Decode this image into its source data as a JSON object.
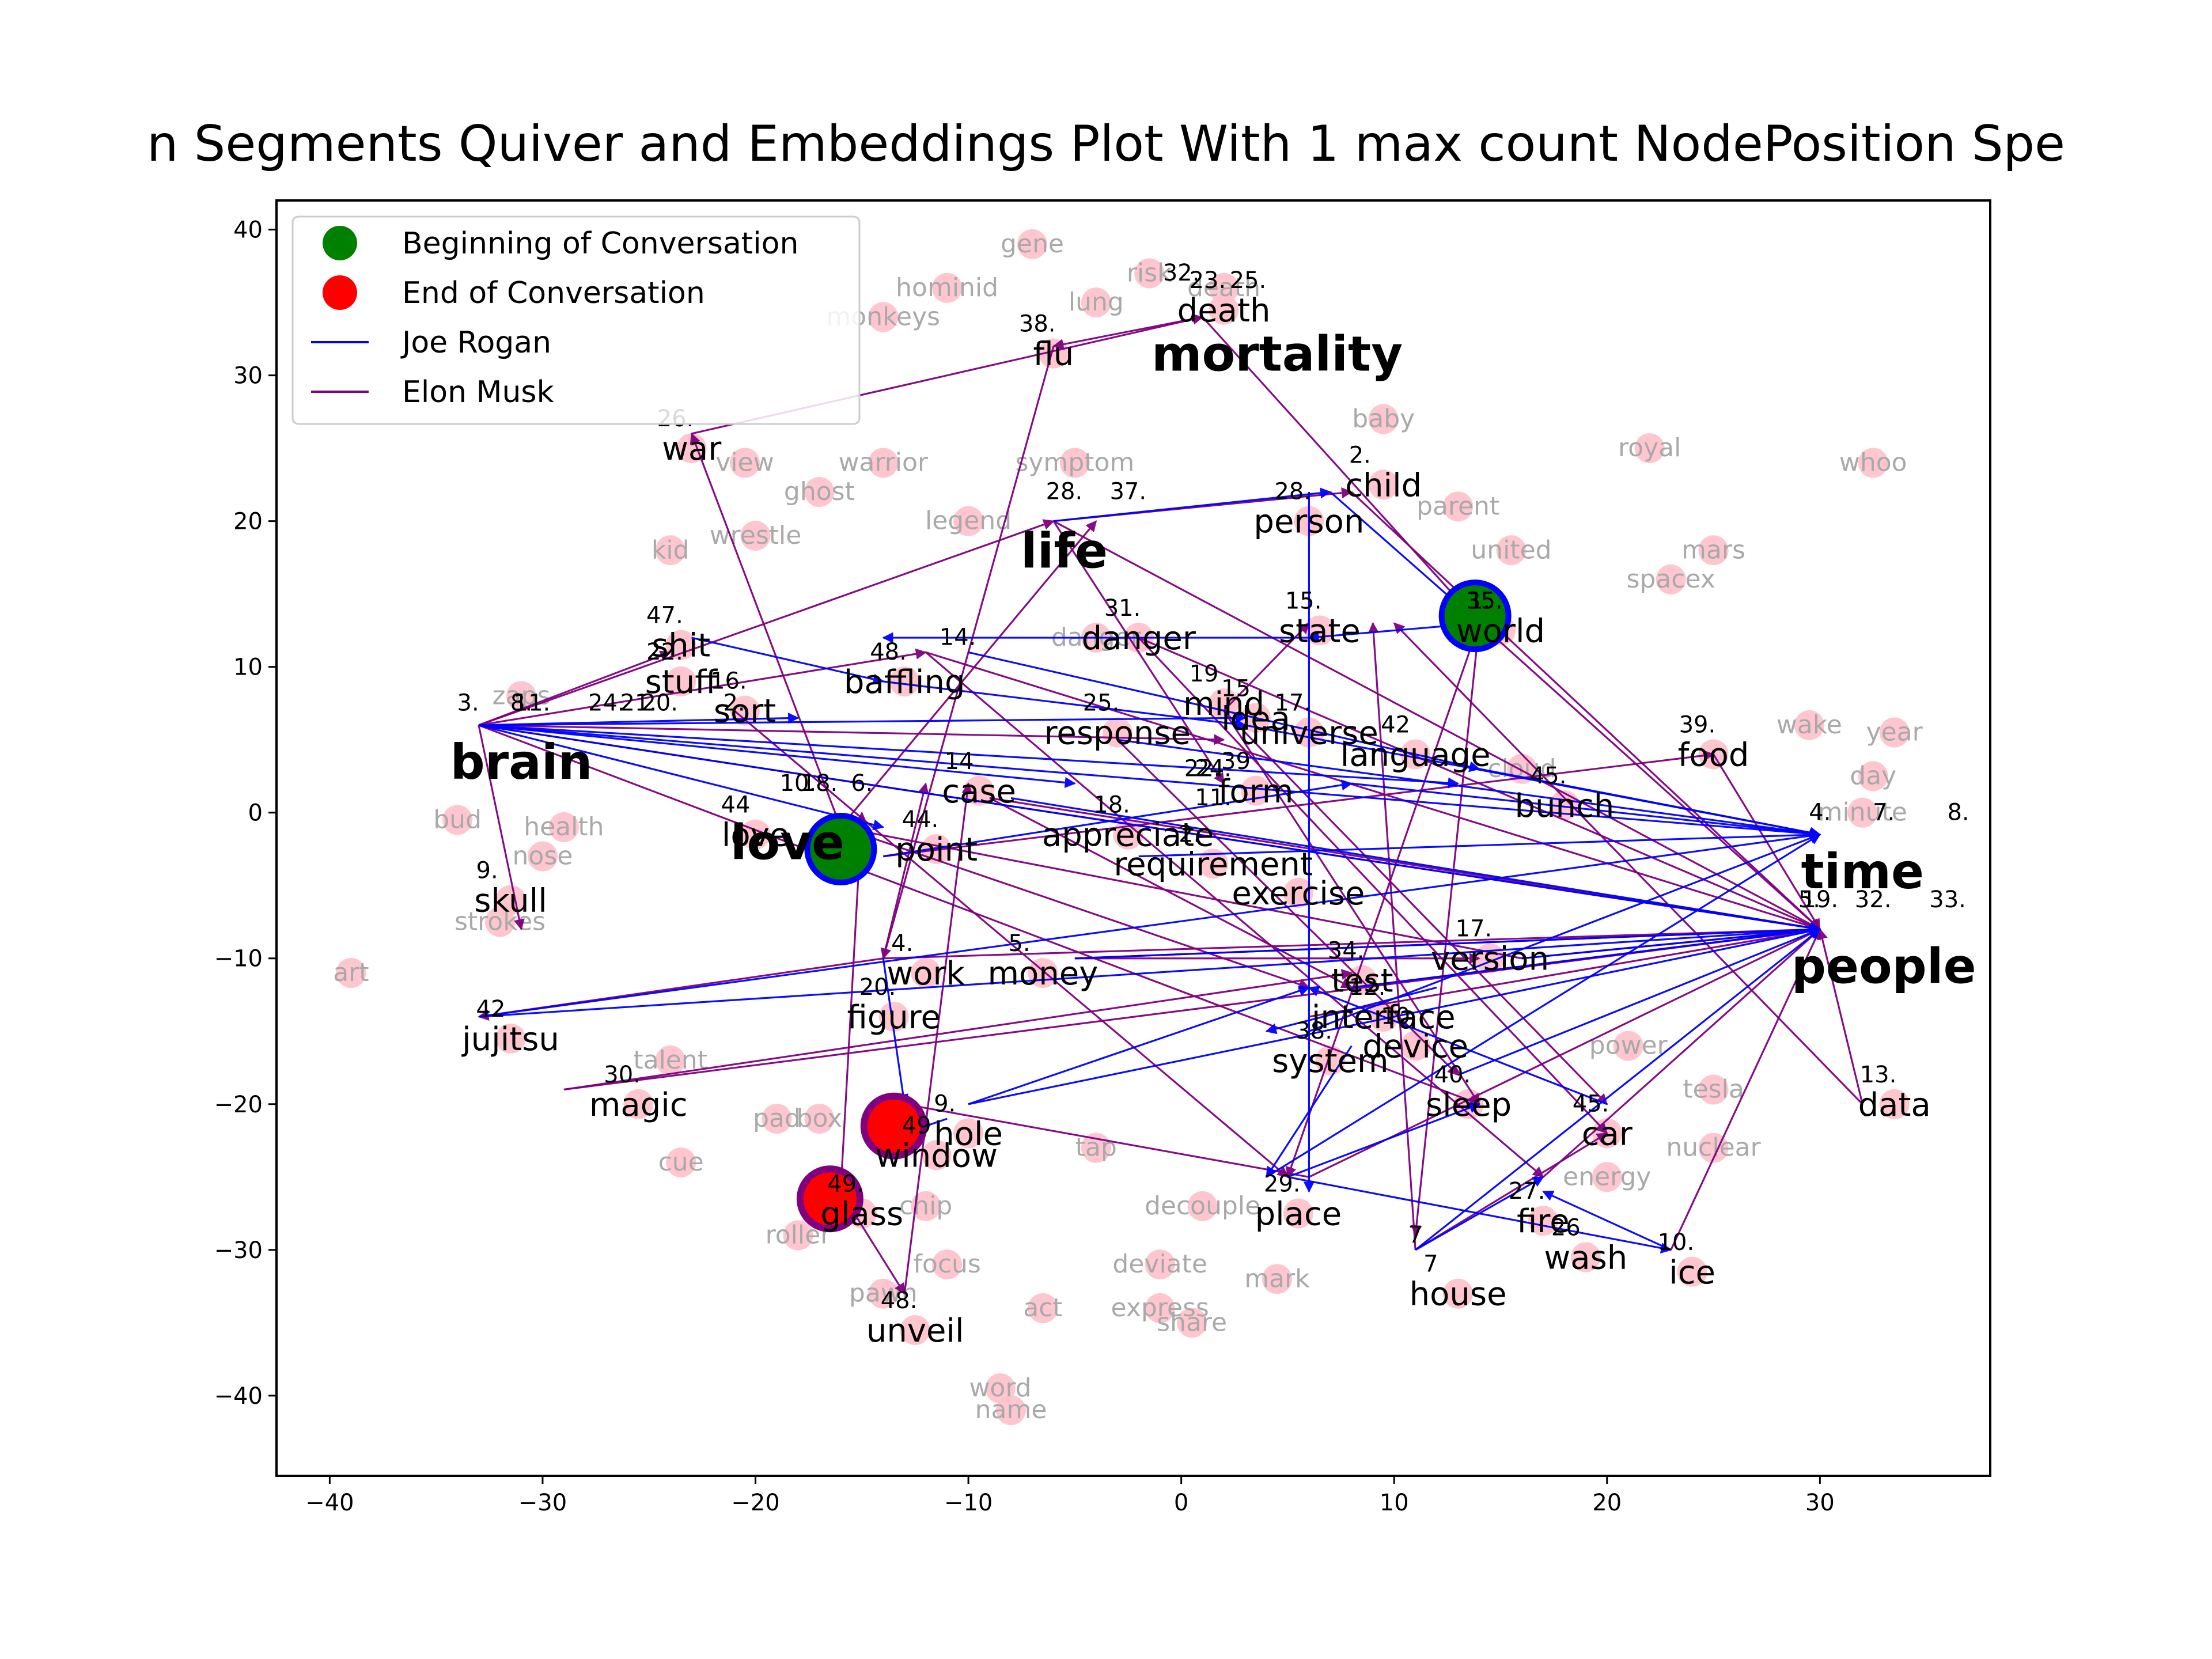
{
  "title": "n Segments Quiver and Embeddings Plot With 1 max count NodePosition Spe",
  "chart_data": {
    "type": "scatter",
    "title": "n Segments Quiver and Embeddings Plot With 1 max count NodePosition Spe",
    "xlim": [
      -42.5,
      38
    ],
    "ylim": [
      -45.5,
      42
    ],
    "xticks": [
      -40,
      -30,
      -20,
      -10,
      0,
      10,
      20,
      30
    ],
    "yticks": [
      -40,
      -30,
      -20,
      -10,
      0,
      10,
      20,
      30,
      40
    ],
    "tick_labels_x": [
      "−40",
      "−30",
      "−20",
      "−10",
      "0",
      "10",
      "20",
      "30"
    ],
    "tick_labels_y": [
      "−40",
      "−30",
      "−20",
      "−10",
      "0",
      "10",
      "20",
      "30",
      "40"
    ],
    "grid": false,
    "legend": {
      "position": "top-left",
      "entries": [
        {
          "label": "Beginning of Conversation",
          "color": "#008000",
          "kind": "marker"
        },
        {
          "label": "End of Conversation",
          "color": "#ff0000",
          "kind": "marker"
        },
        {
          "label": "Joe Rogan",
          "color": "#0000ff",
          "kind": "line"
        },
        {
          "label": "Elon Musk",
          "color": "#800080",
          "kind": "line"
        }
      ]
    },
    "colors": {
      "background_points": "#ffc0cb",
      "background_text": "#a9a9a9",
      "joe_rogan": "#0000ff",
      "elon_musk": "#800080",
      "start": "#008000",
      "end": "#ff0000"
    },
    "background_words": [
      {
        "text": "gene",
        "x": -7,
        "y": 39
      },
      {
        "text": "risk",
        "x": -1.5,
        "y": 37
      },
      {
        "text": "hominid",
        "x": -11,
        "y": 36
      },
      {
        "text": "monkeys",
        "x": -14,
        "y": 34
      },
      {
        "text": "lung",
        "x": -4,
        "y": 35
      },
      {
        "text": "warrior",
        "x": -14,
        "y": 24
      },
      {
        "text": "symptom",
        "x": -5,
        "y": 24
      },
      {
        "text": "ghost",
        "x": -17,
        "y": 22
      },
      {
        "text": "legend",
        "x": -10,
        "y": 20
      },
      {
        "text": "view",
        "x": -20.5,
        "y": 24
      },
      {
        "text": "kid",
        "x": -24,
        "y": 18
      },
      {
        "text": "zaps",
        "x": -31,
        "y": 8
      },
      {
        "text": "bud",
        "x": -34,
        "y": -0.5
      },
      {
        "text": "health",
        "x": -29,
        "y": -1
      },
      {
        "text": "nose",
        "x": -30,
        "y": -3
      },
      {
        "text": "strokes",
        "x": -32,
        "y": -7.5
      },
      {
        "text": "art",
        "x": -39,
        "y": -11
      },
      {
        "text": "talent",
        "x": -24,
        "y": -17
      },
      {
        "text": "cue",
        "x": -23.5,
        "y": -24
      },
      {
        "text": "pad",
        "x": -19,
        "y": -21
      },
      {
        "text": "box",
        "x": -17,
        "y": -21
      },
      {
        "text": "roller",
        "x": -18,
        "y": -29
      },
      {
        "text": "chip",
        "x": -12,
        "y": -27
      },
      {
        "text": "focus",
        "x": -11,
        "y": -31
      },
      {
        "text": "pawn",
        "x": -14,
        "y": -33
      },
      {
        "text": "act",
        "x": -6.5,
        "y": -34
      },
      {
        "text": "deviate",
        "x": -1,
        "y": -31
      },
      {
        "text": "express",
        "x": -1,
        "y": -34
      },
      {
        "text": "share",
        "x": 0.5,
        "y": -35
      },
      {
        "text": "mark",
        "x": 4.5,
        "y": -32
      },
      {
        "text": "tap",
        "x": -4,
        "y": -23
      },
      {
        "text": "decouple",
        "x": 1,
        "y": -27
      },
      {
        "text": "word",
        "x": -8.5,
        "y": -39.5
      },
      {
        "text": "name",
        "x": -8,
        "y": -41
      },
      {
        "text": "energy",
        "x": 20,
        "y": -25
      },
      {
        "text": "tesla",
        "x": 25,
        "y": -19
      },
      {
        "text": "nuclear",
        "x": 25,
        "y": -23
      },
      {
        "text": "power",
        "x": 21,
        "y": -16
      },
      {
        "text": "cloud",
        "x": 16,
        "y": 3
      },
      {
        "text": "wake",
        "x": 29.5,
        "y": 6
      },
      {
        "text": "year",
        "x": 33.5,
        "y": 5.5
      },
      {
        "text": "day",
        "x": 32.5,
        "y": 2.5
      },
      {
        "text": "minute",
        "x": 32,
        "y": 0
      },
      {
        "text": "united",
        "x": 15.5,
        "y": 18
      },
      {
        "text": "royal",
        "x": 22,
        "y": 25
      },
      {
        "text": "spacex",
        "x": 23,
        "y": 16
      },
      {
        "text": "mars",
        "x": 25,
        "y": 18
      },
      {
        "text": "whoo",
        "x": 32.5,
        "y": 24
      },
      {
        "text": "baby",
        "x": 9.5,
        "y": 27
      },
      {
        "text": "parent",
        "x": 13,
        "y": 21
      },
      {
        "text": "danger",
        "x": -4,
        "y": 12
      },
      {
        "text": "wrestle",
        "x": -20,
        "y": 19
      },
      {
        "text": "death",
        "x": 2,
        "y": 36
      }
    ],
    "key_words": [
      {
        "text": "death",
        "x": 2,
        "y": 34.5,
        "num": "23.",
        "num2": "25."
      },
      {
        "text": "flu",
        "x": -6,
        "y": 31.5,
        "num": "38."
      },
      {
        "text": "war",
        "x": -23,
        "y": 25,
        "num": "26."
      },
      {
        "text": "child",
        "x": 9.5,
        "y": 22.5,
        "num": "2."
      },
      {
        "text": "person",
        "x": 6,
        "y": 20,
        "num": "28."
      },
      {
        "text": "world",
        "x": 15,
        "y": 12.5,
        "num": "35."
      },
      {
        "text": "state",
        "x": 6.5,
        "y": 12.5,
        "num": "15."
      },
      {
        "text": "danger",
        "x": -2,
        "y": 12,
        "num": "31."
      },
      {
        "text": "baffling",
        "x": -13,
        "y": 9,
        "num": "48."
      },
      {
        "text": "shit",
        "x": -23.5,
        "y": 11.5,
        "num": "47."
      },
      {
        "text": "stuff",
        "x": -23.5,
        "y": 9,
        "num": "22."
      },
      {
        "text": "sort",
        "x": -20.5,
        "y": 7,
        "num": "16."
      },
      {
        "text": "mind",
        "x": 2,
        "y": 7.5,
        "num": "19"
      },
      {
        "text": "idea",
        "x": 3.5,
        "y": 6.5,
        "num": "15"
      },
      {
        "text": "response",
        "x": -3,
        "y": 5.5,
        "num": "25."
      },
      {
        "text": "universe",
        "x": 6,
        "y": 5.5,
        "num": "17."
      },
      {
        "text": "language",
        "x": 11,
        "y": 4,
        "num": "42"
      },
      {
        "text": "food",
        "x": 25,
        "y": 4,
        "num": "39."
      },
      {
        "text": "case",
        "x": -9.5,
        "y": 1.5,
        "num": "14"
      },
      {
        "text": "form",
        "x": 3.5,
        "y": 1.5,
        "num": "39"
      },
      {
        "text": "bunch",
        "x": 18,
        "y": 0.5,
        "num": "45."
      },
      {
        "text": "appreciate",
        "x": -2.5,
        "y": -1.5,
        "num": "18."
      },
      {
        "text": "point",
        "x": -11.5,
        "y": -2.5,
        "num": "44."
      },
      {
        "text": "requirement",
        "x": 1.5,
        "y": -3.5,
        "num": "2."
      },
      {
        "text": "exercise",
        "x": 5.5,
        "y": -5.5
      },
      {
        "text": "skull",
        "x": -31.5,
        "y": -6,
        "num": "9."
      },
      {
        "text": "work",
        "x": -12,
        "y": -11,
        "num": "4."
      },
      {
        "text": "figure",
        "x": -13.5,
        "y": -14,
        "num": "20."
      },
      {
        "text": "money",
        "x": -6.5,
        "y": -11,
        "num": "5."
      },
      {
        "text": "version",
        "x": 14.5,
        "y": -10,
        "num": "17."
      },
      {
        "text": "test",
        "x": 8.5,
        "y": -11.5,
        "num": "34."
      },
      {
        "text": "interface",
        "x": 9.5,
        "y": -14,
        "num": "12."
      },
      {
        "text": "device",
        "x": 11,
        "y": -16,
        "num": "10"
      },
      {
        "text": "system",
        "x": 7,
        "y": -17,
        "num": "38."
      },
      {
        "text": "sleep",
        "x": 13.5,
        "y": -20,
        "num": "40."
      },
      {
        "text": "car",
        "x": 20,
        "y": -22,
        "num": "45."
      },
      {
        "text": "data",
        "x": 33.5,
        "y": -20,
        "num": "13."
      },
      {
        "text": "jujitsu",
        "x": -31.5,
        "y": -15.5,
        "num": "42"
      },
      {
        "text": "magic",
        "x": -25.5,
        "y": -20,
        "num": "30."
      },
      {
        "text": "hole",
        "x": -10,
        "y": -22,
        "num": "9."
      },
      {
        "text": "window",
        "x": -11.5,
        "y": -23.5,
        "num": "49"
      },
      {
        "text": "glass",
        "x": -15,
        "y": -27.5,
        "num": "49."
      },
      {
        "text": "place",
        "x": 5.5,
        "y": -27.5,
        "num": "29."
      },
      {
        "text": "fire",
        "x": 17,
        "y": -28,
        "num": "27."
      },
      {
        "text": "wash",
        "x": 19,
        "y": -30.5,
        "num": "26"
      },
      {
        "text": "ice",
        "x": 24,
        "y": -31.5,
        "num": "10."
      },
      {
        "text": "house",
        "x": 13,
        "y": -33,
        "num": "7"
      },
      {
        "text": "unveil",
        "x": -12.5,
        "y": -35.5,
        "num": "48."
      },
      {
        "text": "love",
        "x": -20,
        "y": -1.5,
        "num": "44"
      }
    ],
    "big_words": [
      {
        "text": "mortality",
        "x": 4.5,
        "y": 31.5
      },
      {
        "text": "life",
        "x": -5.5,
        "y": 18
      },
      {
        "text": "brain",
        "x": -31,
        "y": 3.5
      },
      {
        "text": "love",
        "x": -18.5,
        "y": -2
      },
      {
        "text": "time",
        "x": 32,
        "y": -4
      },
      {
        "text": "people",
        "x": 33,
        "y": -10.5
      }
    ],
    "hub_labels": [
      {
        "text": "3.",
        "x": -33.5,
        "y": 7
      },
      {
        "text": "8.",
        "x": -31,
        "y": 7
      },
      {
        "text": "11.",
        "x": -30.5,
        "y": 7
      },
      {
        "text": "24.",
        "x": -27,
        "y": 7
      },
      {
        "text": "21.",
        "x": -25.5,
        "y": 7
      },
      {
        "text": "20.",
        "x": -24.5,
        "y": 7
      },
      {
        "text": "2.",
        "x": -21,
        "y": 7
      },
      {
        "text": "4.",
        "x": 30,
        "y": -0.5
      },
      {
        "text": "7.",
        "x": 33,
        "y": -0.5
      },
      {
        "text": "8.",
        "x": 36.5,
        "y": -0.5
      },
      {
        "text": "5.",
        "x": 29.5,
        "y": -6.5
      },
      {
        "text": "19.",
        "x": 30,
        "y": -6.5
      },
      {
        "text": "32.",
        "x": 32.5,
        "y": -6.5
      },
      {
        "text": "33.",
        "x": 36,
        "y": -6.5
      },
      {
        "text": "28.",
        "x": -5.5,
        "y": 21.5
      },
      {
        "text": "37.",
        "x": -2.5,
        "y": 21.5
      },
      {
        "text": "32.",
        "x": 0,
        "y": 36.5
      },
      {
        "text": "14.",
        "x": -10.5,
        "y": 11.5
      },
      {
        "text": "10.",
        "x": -18,
        "y": 1.5
      },
      {
        "text": "18.",
        "x": -17,
        "y": 1.5
      },
      {
        "text": "6.",
        "x": -15,
        "y": 1.5
      },
      {
        "text": "22.",
        "x": 1,
        "y": 2.5
      },
      {
        "text": "24.",
        "x": 1.5,
        "y": 2.5
      },
      {
        "text": "11.",
        "x": 1.5,
        "y": 0.5
      },
      {
        "text": "1.",
        "x": 14,
        "y": 14
      },
      {
        "text": "7",
        "x": 11,
        "y": -29.5
      }
    ],
    "start_points": [
      {
        "x": -16,
        "y": -2.5
      },
      {
        "x": 13.8,
        "y": 13.5
      }
    ],
    "end_points": [
      {
        "x": -13.5,
        "y": -21.5
      },
      {
        "x": -16.5,
        "y": -26.5
      }
    ],
    "joe_rogan_arrows": [
      [
        -33,
        6,
        30,
        -1.5
      ],
      [
        -33,
        6,
        -14,
        -1
      ],
      [
        -33,
        6,
        -5,
        2
      ],
      [
        -33,
        6,
        13,
        2
      ],
      [
        -33,
        6,
        30,
        -8
      ],
      [
        -33,
        6,
        -18,
        6.5
      ],
      [
        -33,
        6,
        3,
        6.5
      ],
      [
        -23,
        12,
        -14,
        9
      ],
      [
        -14,
        9,
        3,
        6
      ],
      [
        -10,
        11,
        14,
        3
      ],
      [
        14,
        3,
        30,
        -1.5
      ],
      [
        -6,
        20,
        7,
        22
      ],
      [
        7,
        22,
        14,
        13
      ],
      [
        14,
        13,
        6,
        12
      ],
      [
        6,
        12,
        -14,
        12
      ],
      [
        -33,
        -14,
        30,
        -1.5
      ],
      [
        -33,
        -14,
        30,
        -8
      ],
      [
        -10,
        -20,
        30,
        -8
      ],
      [
        -10,
        -20,
        6,
        -12
      ],
      [
        -11,
        -21,
        -13,
        -22
      ],
      [
        5,
        -25,
        23,
        -30
      ],
      [
        5,
        -25,
        14,
        -20
      ],
      [
        11,
        -30,
        17,
        -25
      ],
      [
        11,
        -30,
        30,
        -8
      ],
      [
        23,
        -30,
        17,
        -26
      ],
      [
        8,
        -16,
        4,
        -25
      ],
      [
        4,
        -25,
        30,
        -1.5
      ],
      [
        -5,
        -10,
        30,
        -8
      ],
      [
        -2,
        -3,
        30,
        -1.5
      ],
      [
        6,
        -15,
        30,
        -1.5
      ],
      [
        16,
        -10,
        30,
        -8
      ],
      [
        8,
        -12,
        30,
        -8
      ],
      [
        12,
        -12,
        4,
        -15
      ],
      [
        -14,
        -3,
        8,
        2
      ],
      [
        8,
        2,
        30,
        -1.5
      ],
      [
        6,
        22,
        6,
        -26
      ],
      [
        -14,
        -10,
        -13,
        -20
      ],
      [
        20,
        -20,
        6,
        -12
      ],
      [
        13,
        -18,
        30,
        -8
      ],
      [
        3,
        6,
        30,
        -1.5
      ],
      [
        -3,
        5,
        30,
        -1.5
      ],
      [
        -8,
        1,
        30,
        -8
      ]
    ],
    "elon_musk_arrows": [
      [
        -33,
        6,
        30,
        -8
      ],
      [
        -33,
        6,
        -6,
        20
      ],
      [
        -33,
        6,
        2,
        5
      ],
      [
        -33,
        6,
        14,
        -20
      ],
      [
        -33,
        6,
        -12,
        11
      ],
      [
        -33,
        6,
        -24,
        11
      ],
      [
        -33,
        6,
        -31,
        -8
      ],
      [
        -23,
        26,
        1,
        34
      ],
      [
        1,
        34,
        14,
        13
      ],
      [
        1,
        34,
        -6,
        32
      ],
      [
        -6,
        32,
        -14,
        -10
      ],
      [
        -6,
        20,
        30,
        -8
      ],
      [
        -6,
        20,
        2,
        2
      ],
      [
        -6,
        20,
        8,
        22
      ],
      [
        8,
        22,
        30,
        -8
      ],
      [
        14,
        13,
        30,
        -8
      ],
      [
        14,
        13,
        5,
        -25
      ],
      [
        14,
        13,
        11,
        -29
      ],
      [
        -12,
        11,
        17,
        -25
      ],
      [
        -12,
        11,
        30,
        -8
      ],
      [
        -21,
        7,
        5,
        -25
      ],
      [
        -16,
        -1,
        6,
        -12
      ],
      [
        -16,
        -1,
        -4,
        20
      ],
      [
        -16,
        -1,
        -23,
        26
      ],
      [
        -14,
        -10,
        -33,
        -14
      ],
      [
        -14,
        -10,
        30,
        -8
      ],
      [
        -14,
        -10,
        -12,
        2
      ],
      [
        -29,
        -19,
        30,
        -8
      ],
      [
        -29,
        -19,
        8,
        -11
      ],
      [
        -16,
        -26,
        -15,
        0
      ],
      [
        -16,
        -26,
        -13,
        -33
      ],
      [
        -13,
        -33,
        -10,
        2
      ],
      [
        6,
        -25,
        30,
        -8
      ],
      [
        6,
        -25,
        -13,
        -20
      ],
      [
        11,
        -30,
        9,
        13
      ],
      [
        11,
        -30,
        20,
        -22
      ],
      [
        17,
        -25,
        30,
        -8
      ],
      [
        23,
        -30,
        30,
        -8
      ],
      [
        32,
        -20,
        10,
        13
      ],
      [
        32,
        -20,
        30,
        -8
      ],
      [
        16,
        -10,
        -16,
        -1
      ],
      [
        16,
        -10,
        30,
        -8
      ],
      [
        2,
        7,
        14,
        -20
      ],
      [
        2,
        7,
        20,
        -20
      ],
      [
        2,
        7,
        6,
        13
      ],
      [
        -2,
        12,
        20,
        -22
      ],
      [
        -2,
        12,
        30,
        -8
      ],
      [
        -3,
        5,
        13,
        -18
      ],
      [
        -9,
        1,
        30,
        -8
      ],
      [
        -9,
        1,
        8,
        -12
      ],
      [
        -14,
        -3,
        25,
        4
      ],
      [
        25,
        4,
        30,
        -8
      ],
      [
        8,
        -12,
        30,
        -8
      ],
      [
        6,
        -14,
        30,
        -8
      ],
      [
        -5,
        -10,
        30,
        -8
      ],
      [
        -5,
        -10,
        14,
        -10
      ]
    ]
  }
}
